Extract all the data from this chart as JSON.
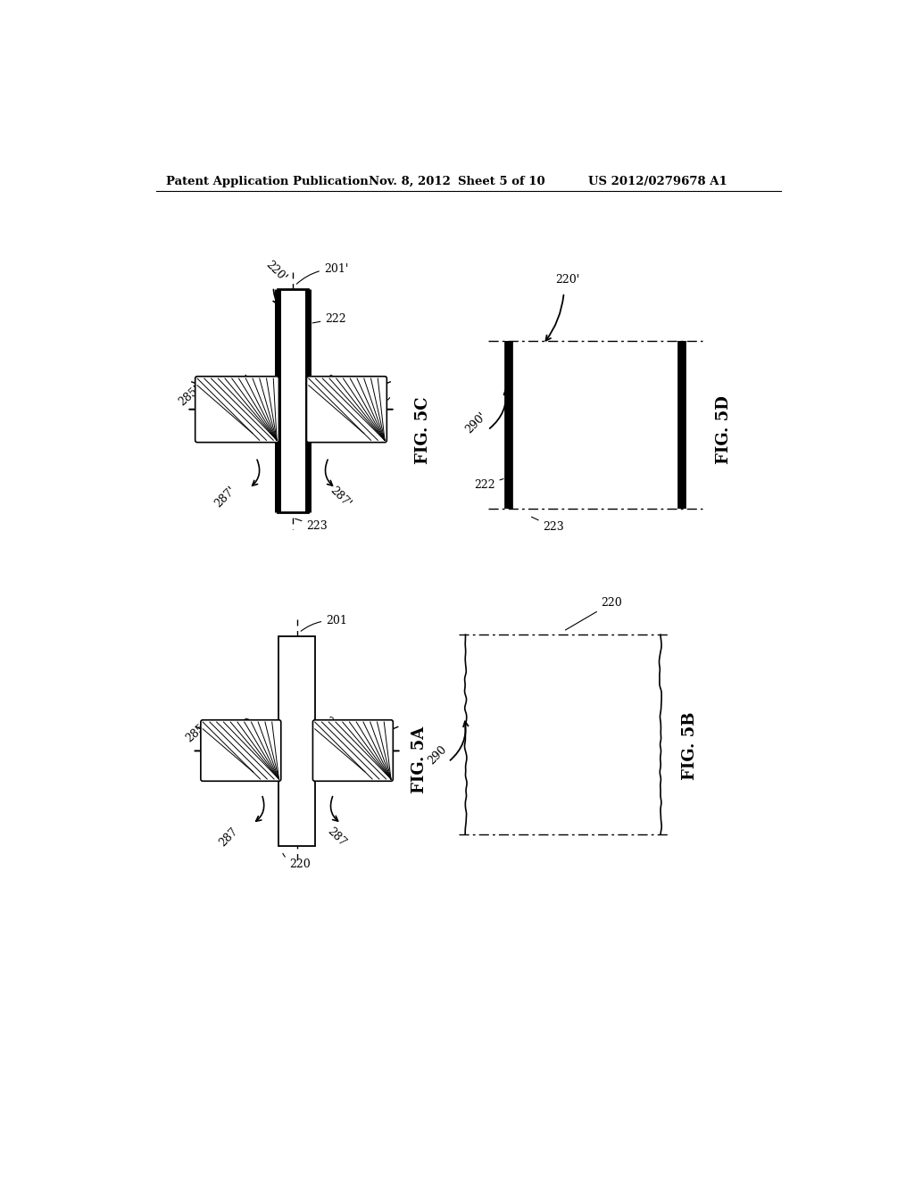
{
  "bg_color": "#ffffff",
  "header_text": "Patent Application Publication",
  "header_date": "Nov. 8, 2012",
  "header_sheet": "Sheet 5 of 10",
  "header_patent": "US 2012/0279678 A1",
  "fig5c_label": "FIG. 5C",
  "fig5d_label": "FIG. 5D",
  "fig5a_label": "FIG. 5A",
  "fig5b_label": "FIG. 5B"
}
